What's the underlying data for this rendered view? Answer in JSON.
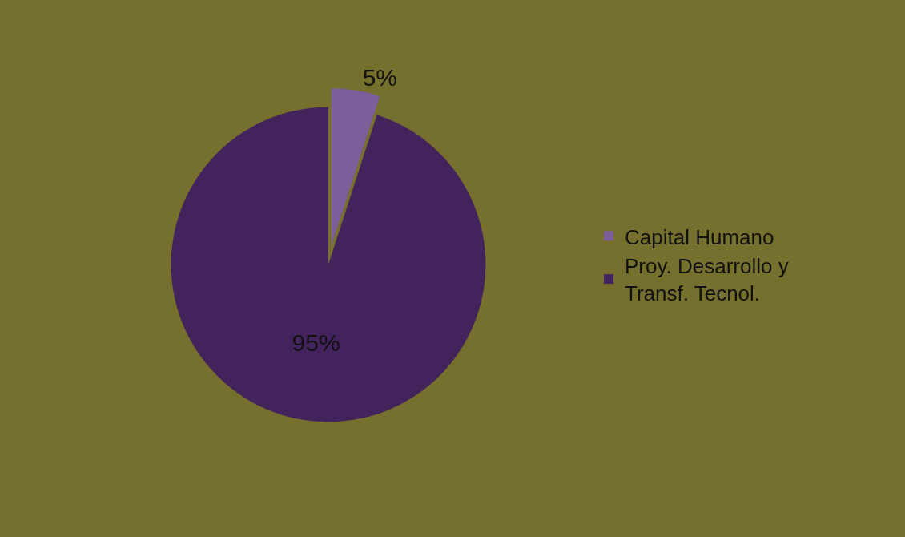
{
  "chart_data": {
    "type": "pie",
    "categories": [
      "Capital Humano",
      "Proy. Desarrollo y Transf. Tecnol."
    ],
    "values": [
      5,
      95
    ],
    "colors": [
      "#7a5f9a",
      "#43235c"
    ],
    "value_labels": [
      "5%",
      "95%"
    ],
    "legend": "right"
  }
}
